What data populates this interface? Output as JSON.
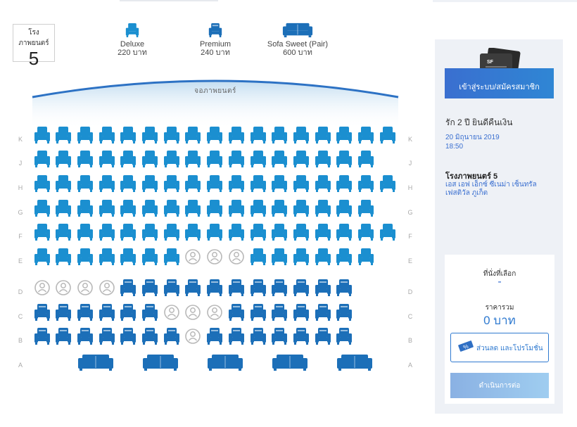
{
  "theatre": {
    "label": "โรงภาพยนตร์",
    "number": "5"
  },
  "legend": [
    {
      "name": "Deluxe",
      "price": "220 บาท",
      "icon": "deluxe-seat-icon"
    },
    {
      "name": "Premium",
      "price": "240 บาท",
      "icon": "premium-seat-icon"
    },
    {
      "name": "Sofa Sweet (Pair)",
      "price": "600 บาท",
      "icon": "sofa-seat-icon"
    }
  ],
  "screen_label": "จอภาพยนตร์",
  "colors": {
    "seat": "#1b8fd0",
    "seat_dark": "#1c6fb8",
    "occupied": "#b8b8b8",
    "accent": "#3a6fd0"
  },
  "rows": [
    {
      "label": "K",
      "type": "deluxe",
      "seats": 17,
      "taken": []
    },
    {
      "label": "J",
      "type": "deluxe",
      "seats": 16,
      "taken": []
    },
    {
      "label": "H",
      "type": "deluxe",
      "seats": 17,
      "taken": []
    },
    {
      "label": "G",
      "type": "deluxe",
      "seats": 16,
      "taken": []
    },
    {
      "label": "F",
      "type": "deluxe",
      "seats": 17,
      "taken": []
    },
    {
      "label": "E",
      "type": "deluxe",
      "seats": 16,
      "taken": [
        7,
        8,
        9
      ]
    },
    {
      "label": "D",
      "type": "premium",
      "seats": 15,
      "taken": [
        0,
        1,
        2,
        3
      ]
    },
    {
      "label": "C",
      "type": "premium",
      "seats": 15,
      "taken": [
        6,
        7,
        8
      ]
    },
    {
      "label": "B",
      "type": "premium",
      "seats": 15,
      "taken": [
        7
      ]
    },
    {
      "label": "A",
      "type": "sofa",
      "seats": 5,
      "taken": []
    }
  ],
  "panel": {
    "login_label": "เข้าสู่ระบบ/สมัครสมาชิก",
    "movie_title": "รัก 2 ปี ยินดีคืนเงิน",
    "date": "20 มิถุนายน 2019",
    "time": "18:50",
    "cinema_title": "โรงภาพยนตร์ 5",
    "cinema_name": "เอส เอฟ เอ็กซ์ ซีเนม่า เซ็นทรัลเฟสติวัล ภูเก็ต",
    "seat_label": "ที่นั่งที่เลือก",
    "seat_value": "-",
    "price_label": "ราคารวม",
    "price_value": "0 บาท",
    "promo_label": "ส่วนลด และโปรโมชั่น",
    "continue_label": "ดำเนินการต่อ"
  }
}
